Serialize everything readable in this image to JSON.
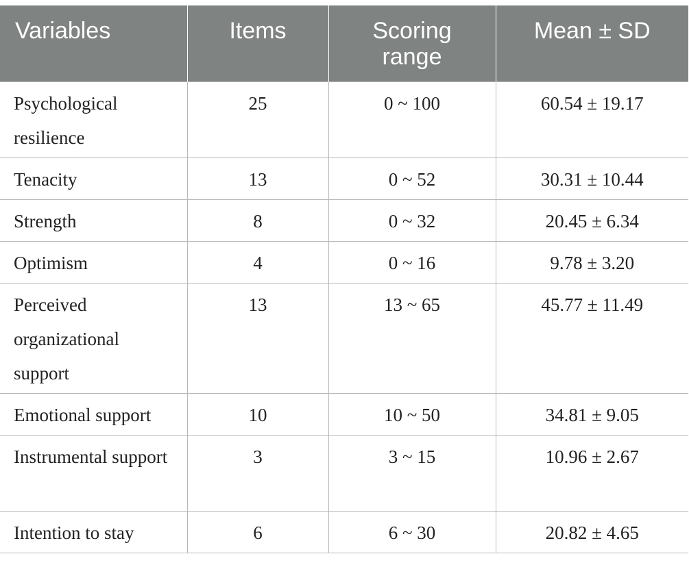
{
  "table": {
    "headers": [
      "Variables",
      "Items",
      "Scoring range",
      "Mean ± SD"
    ],
    "rows": [
      {
        "variable": "Psychological resilience",
        "items": "25",
        "range": "0 ~ 100",
        "mean_sd": "60.54 ± 19.17"
      },
      {
        "variable": "Tenacity",
        "items": "13",
        "range": "0 ~ 52",
        "mean_sd": "30.31 ± 10.44"
      },
      {
        "variable": "Strength",
        "items": "8",
        "range": "0 ~ 32",
        "mean_sd": "20.45 ± 6.34"
      },
      {
        "variable": "Optimism",
        "items": "4",
        "range": "0 ~ 16",
        "mean_sd": "9.78 ± 3.20"
      },
      {
        "variable": "Perceived organizational support",
        "items": "13",
        "range": "13 ~ 65",
        "mean_sd": "45.77 ± 11.49"
      },
      {
        "variable": "Emotional support",
        "items": "10",
        "range": "10 ~ 50",
        "mean_sd": "34.81 ± 9.05"
      },
      {
        "variable": "Instrumental support",
        "items": "3",
        "range": "3 ~ 15",
        "mean_sd": "10.96 ± 2.67"
      },
      {
        "variable": "Intention to stay",
        "items": "6",
        "range": "6 ~ 30",
        "mean_sd": "20.82 ± 4.65"
      }
    ]
  },
  "colors": {
    "header_background": "#7f8381",
    "header_text": "#ffffff",
    "grid_line": "#b8b8b8",
    "body_text": "#222222"
  }
}
